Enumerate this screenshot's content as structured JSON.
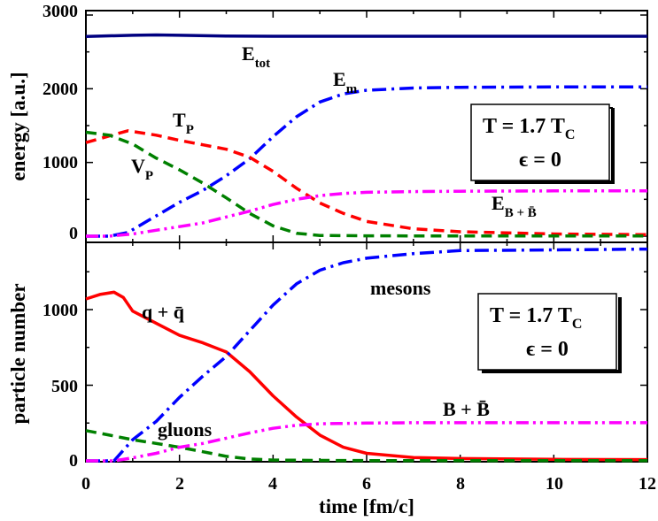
{
  "chart_data": [
    {
      "type": "line",
      "panel": "top",
      "xlabel": "",
      "ylabel": "energy [a.u.]",
      "xlim": [
        0,
        12
      ],
      "ylim": [
        0,
        3000
      ],
      "yticks": [
        "0",
        "1000",
        "2000",
        "3000"
      ],
      "grid": false,
      "series": [
        {
          "name": "E_tot",
          "color": "#000080",
          "style": "solid",
          "x": [
            0,
            1,
            1.5,
            2,
            3,
            4,
            6,
            8,
            10,
            12
          ],
          "y": [
            2710,
            2725,
            2730,
            2725,
            2715,
            2712,
            2712,
            2712,
            2712,
            2712
          ]
        },
        {
          "name": "E_m",
          "color": "#0000ff",
          "style": "dashdot",
          "x": [
            0,
            0.5,
            0.9,
            1.3,
            2,
            2.5,
            3,
            3.5,
            4,
            4.5,
            5,
            5.5,
            6,
            7,
            8,
            10,
            12
          ],
          "y": [
            0,
            0,
            50,
            200,
            460,
            620,
            820,
            1050,
            1350,
            1620,
            1820,
            1930,
            1980,
            2010,
            2020,
            2025,
            2025
          ]
        },
        {
          "name": "T_P",
          "color": "#ff0000",
          "style": "dashed",
          "x": [
            0,
            0.5,
            0.9,
            1.5,
            2,
            2.5,
            3,
            3.5,
            4,
            4.5,
            5,
            5.5,
            6,
            7,
            8,
            10,
            12
          ],
          "y": [
            1270,
            1360,
            1430,
            1370,
            1300,
            1240,
            1180,
            1070,
            880,
            650,
            450,
            310,
            200,
            100,
            60,
            30,
            20
          ]
        },
        {
          "name": "V_P",
          "color": "#008000",
          "style": "dashed",
          "x": [
            0,
            0.5,
            1,
            1.5,
            2,
            2.5,
            3,
            3.5,
            4,
            4.5,
            5,
            6,
            8,
            10,
            12
          ],
          "y": [
            1410,
            1370,
            1250,
            1060,
            900,
            720,
            520,
            310,
            140,
            40,
            10,
            5,
            3,
            3,
            3
          ]
        },
        {
          "name": "E_B+B̄",
          "color": "#ff00ff",
          "style": "dashdotdot",
          "x": [
            0,
            0.5,
            1,
            1.5,
            2,
            2.5,
            3,
            3.5,
            4,
            4.5,
            5,
            5.5,
            6,
            7,
            8,
            10,
            12
          ],
          "y": [
            0,
            0,
            30,
            80,
            130,
            180,
            260,
            340,
            430,
            500,
            550,
            580,
            595,
            605,
            610,
            615,
            615
          ]
        }
      ]
    },
    {
      "type": "line",
      "panel": "bottom",
      "xlabel": "time [fm/c]",
      "ylabel": "particle number",
      "xlim": [
        0,
        12
      ],
      "ylim": [
        0,
        1450
      ],
      "xticks": [
        "0",
        "2",
        "4",
        "6",
        "8",
        "10",
        "12"
      ],
      "yticks": [
        "0",
        "500",
        "1000"
      ],
      "grid": false,
      "series": [
        {
          "name": "q + q̄",
          "color": "#ff0000",
          "style": "solid",
          "x": [
            0,
            0.3,
            0.6,
            0.8,
            1,
            1.5,
            2,
            2.5,
            3,
            3.5,
            4,
            4.5,
            5,
            5.5,
            6,
            7,
            8,
            10,
            12
          ],
          "y": [
            1070,
            1100,
            1115,
            1080,
            990,
            910,
            830,
            780,
            720,
            590,
            430,
            290,
            170,
            90,
            50,
            22,
            15,
            10,
            8
          ]
        },
        {
          "name": "mesons",
          "color": "#0000ff",
          "style": "dashdot",
          "x": [
            0,
            0.6,
            1,
            1.5,
            2,
            2.5,
            3,
            3.5,
            4,
            4.5,
            5,
            5.5,
            6,
            7,
            8,
            10,
            12
          ],
          "y": [
            0,
            0,
            140,
            260,
            420,
            560,
            690,
            860,
            1030,
            1170,
            1260,
            1310,
            1340,
            1370,
            1390,
            1395,
            1400
          ]
        },
        {
          "name": "gluons",
          "color": "#008000",
          "style": "dashed",
          "x": [
            0,
            0.5,
            1,
            1.5,
            2,
            2.5,
            3,
            3.5,
            4,
            5,
            6,
            8,
            10,
            12
          ],
          "y": [
            200,
            170,
            140,
            115,
            90,
            60,
            30,
            12,
            5,
            3,
            2,
            2,
            2,
            2
          ]
        },
        {
          "name": "B + B̄",
          "color": "#ff00ff",
          "style": "dashdotdot",
          "x": [
            0,
            0.6,
            1,
            1.5,
            2,
            2.5,
            3,
            3.5,
            4,
            4.5,
            5,
            6,
            7,
            8,
            10,
            12
          ],
          "y": [
            0,
            0,
            20,
            50,
            90,
            115,
            150,
            185,
            215,
            235,
            245,
            250,
            252,
            252,
            252,
            252
          ]
        }
      ]
    }
  ],
  "labels": {
    "top": {
      "e_main": "E",
      "e_tot_sub": "tot",
      "em_main": "E",
      "em_sub": "m",
      "tp_main": "T",
      "tp_sub": "P",
      "vp_main": "V",
      "vp_sub": "P",
      "ebb_main": "E",
      "ebb_sub": "B + B̄",
      "box_line1_main": "T = 1.7 T",
      "box_line1_sub": "C",
      "box_line2": "ϵ = 0"
    },
    "bottom": {
      "qq": "q +  q̄",
      "mesons": "mesons",
      "gluons": "gluons",
      "bb": "B + B̄",
      "box_line1_main": "T = 1.7 T",
      "box_line1_sub": "C",
      "box_line2": "ϵ  = 0"
    }
  },
  "colors": {
    "navy": "#000080",
    "blue": "#0000ff",
    "red": "#ff0000",
    "green": "#008000",
    "magenta": "#ff00ff"
  }
}
